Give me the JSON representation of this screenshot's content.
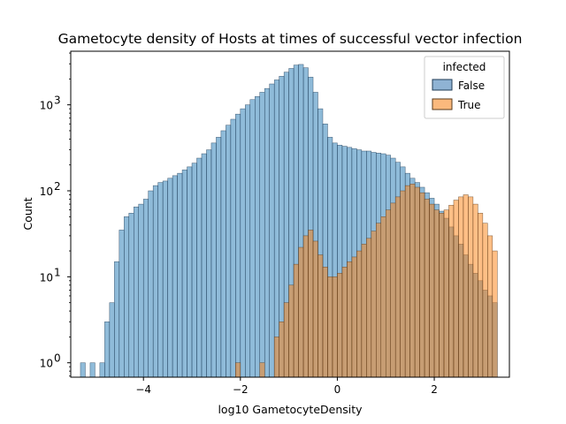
{
  "chart_data": {
    "type": "histogram",
    "title": "Gametocyte density of Hosts at times of successful vector infection",
    "xlabel": "log10 GametocyteDensity",
    "ylabel": "Count",
    "xlim": [
      -5.5,
      3.55
    ],
    "ylim": [
      0.68,
      4200
    ],
    "y_scale": "log",
    "x_ticks": [
      {
        "v": -4,
        "label": "−4"
      },
      {
        "v": -2,
        "label": "−2"
      },
      {
        "v": 0,
        "label": "0"
      },
      {
        "v": 2,
        "label": "2"
      }
    ],
    "y_ticks": [
      {
        "v": 1,
        "base": "10",
        "exp": "0"
      },
      {
        "v": 10,
        "base": "10",
        "exp": "1"
      },
      {
        "v": 100,
        "base": "10",
        "exp": "2"
      },
      {
        "v": 1000,
        "base": "10",
        "exp": "3"
      }
    ],
    "legend": {
      "title": "infected",
      "placement": "top-right",
      "entries": [
        {
          "label": "False",
          "color": "#8fb3d4"
        },
        {
          "label": "True",
          "color": "#fbb97d"
        }
      ]
    },
    "grid": false,
    "bin_range": [
      -5.25,
      3.28
    ],
    "series": [
      {
        "name": "False",
        "fill": "#1f77b4",
        "edge": "#1f3b55",
        "points": [
          [
            -5.25,
            1
          ],
          [
            -5.05,
            1
          ],
          [
            -4.85,
            1
          ],
          [
            -4.75,
            3
          ],
          [
            -4.65,
            5
          ],
          [
            -4.55,
            15
          ],
          [
            -4.45,
            35
          ],
          [
            -4.35,
            50
          ],
          [
            -4.25,
            55
          ],
          [
            -4.15,
            65
          ],
          [
            -4.05,
            70
          ],
          [
            -3.95,
            80
          ],
          [
            -3.85,
            100
          ],
          [
            -3.75,
            115
          ],
          [
            -3.65,
            125
          ],
          [
            -3.55,
            130
          ],
          [
            -3.45,
            140
          ],
          [
            -3.35,
            150
          ],
          [
            -3.25,
            160
          ],
          [
            -3.15,
            175
          ],
          [
            -3.05,
            190
          ],
          [
            -2.95,
            210
          ],
          [
            -2.85,
            240
          ],
          [
            -2.75,
            270
          ],
          [
            -2.65,
            300
          ],
          [
            -2.55,
            360
          ],
          [
            -2.45,
            420
          ],
          [
            -2.35,
            500
          ],
          [
            -2.25,
            580
          ],
          [
            -2.15,
            680
          ],
          [
            -2.05,
            780
          ],
          [
            -1.95,
            900
          ],
          [
            -1.85,
            1000
          ],
          [
            -1.75,
            1150
          ],
          [
            -1.65,
            1250
          ],
          [
            -1.55,
            1400
          ],
          [
            -1.45,
            1550
          ],
          [
            -1.35,
            1750
          ],
          [
            -1.25,
            1950
          ],
          [
            -1.15,
            2150
          ],
          [
            -1.05,
            2400
          ],
          [
            -0.95,
            2650
          ],
          [
            -0.85,
            2900
          ],
          [
            -0.75,
            2950
          ],
          [
            -0.65,
            2700
          ],
          [
            -0.55,
            2100
          ],
          [
            -0.45,
            1400
          ],
          [
            -0.35,
            900
          ],
          [
            -0.25,
            600
          ],
          [
            -0.15,
            420
          ],
          [
            -0.05,
            360
          ],
          [
            0.05,
            340
          ],
          [
            0.15,
            330
          ],
          [
            0.25,
            320
          ],
          [
            0.35,
            310
          ],
          [
            0.45,
            300
          ],
          [
            0.55,
            290
          ],
          [
            0.65,
            290
          ],
          [
            0.75,
            280
          ],
          [
            0.85,
            275
          ],
          [
            0.95,
            270
          ],
          [
            1.05,
            260
          ],
          [
            1.15,
            240
          ],
          [
            1.25,
            215
          ],
          [
            1.35,
            190
          ],
          [
            1.45,
            160
          ],
          [
            1.55,
            140
          ],
          [
            1.65,
            125
          ],
          [
            1.75,
            110
          ],
          [
            1.85,
            95
          ],
          [
            1.95,
            82
          ],
          [
            2.05,
            70
          ],
          [
            2.15,
            58
          ],
          [
            2.25,
            48
          ],
          [
            2.35,
            38
          ],
          [
            2.45,
            30
          ],
          [
            2.55,
            24
          ],
          [
            2.65,
            18
          ],
          [
            2.75,
            14
          ],
          [
            2.85,
            11
          ],
          [
            2.95,
            9
          ],
          [
            3.05,
            7
          ],
          [
            3.15,
            6
          ],
          [
            3.25,
            5
          ]
        ]
      },
      {
        "name": "True",
        "fill": "#ff7f0e",
        "edge": "#5a3a1a",
        "points": [
          [
            -2.05,
            1
          ],
          [
            -1.55,
            1
          ],
          [
            -1.25,
            2
          ],
          [
            -1.15,
            3
          ],
          [
            -1.05,
            5
          ],
          [
            -0.95,
            8
          ],
          [
            -0.85,
            14
          ],
          [
            -0.75,
            22
          ],
          [
            -0.65,
            30
          ],
          [
            -0.55,
            35
          ],
          [
            -0.45,
            26
          ],
          [
            -0.35,
            18
          ],
          [
            -0.25,
            13
          ],
          [
            -0.15,
            10
          ],
          [
            -0.05,
            10
          ],
          [
            0.05,
            11
          ],
          [
            0.15,
            13
          ],
          [
            0.25,
            15
          ],
          [
            0.35,
            17
          ],
          [
            0.45,
            20
          ],
          [
            0.55,
            24
          ],
          [
            0.65,
            28
          ],
          [
            0.75,
            34
          ],
          [
            0.85,
            42
          ],
          [
            0.95,
            50
          ],
          [
            1.05,
            60
          ],
          [
            1.15,
            72
          ],
          [
            1.25,
            85
          ],
          [
            1.35,
            100
          ],
          [
            1.45,
            115
          ],
          [
            1.55,
            120
          ],
          [
            1.65,
            110
          ],
          [
            1.75,
            95
          ],
          [
            1.85,
            80
          ],
          [
            1.95,
            70
          ],
          [
            2.05,
            60
          ],
          [
            2.15,
            55
          ],
          [
            2.25,
            60
          ],
          [
            2.35,
            68
          ],
          [
            2.45,
            78
          ],
          [
            2.55,
            85
          ],
          [
            2.65,
            90
          ],
          [
            2.75,
            85
          ],
          [
            2.85,
            70
          ],
          [
            2.95,
            55
          ],
          [
            3.05,
            42
          ],
          [
            3.15,
            30
          ],
          [
            3.25,
            20
          ]
        ]
      }
    ]
  }
}
